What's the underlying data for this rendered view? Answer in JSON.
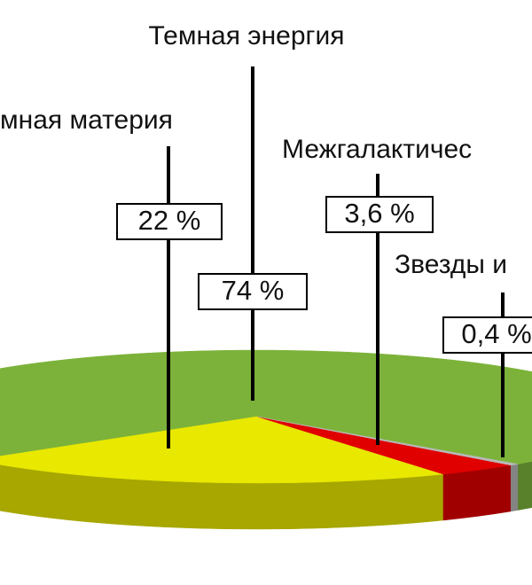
{
  "chart_data": {
    "type": "pie",
    "categories": [
      "Темная энергия",
      "мная материя",
      "Межгалактичес",
      "Звезды и"
    ],
    "values": [
      74,
      22,
      3.6,
      0.4
    ],
    "value_labels": [
      "74 %",
      "22 %",
      "3,6 %",
      "0,4 %"
    ],
    "colors": [
      "#7cb23a",
      "#e8e800",
      "#e00000",
      "#b8b8b8"
    ]
  }
}
